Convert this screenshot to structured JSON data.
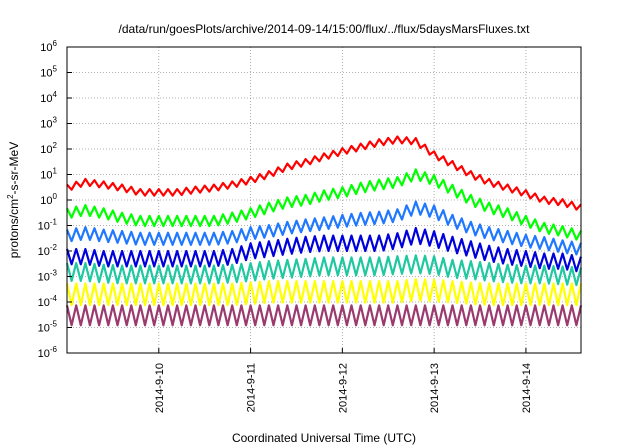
{
  "chart_data": {
    "type": "line",
    "title": "/data/run/goesPlots/archive/2014-09-14/15:00/flux/../flux/5daysMarsFluxes.txt",
    "xlabel": "Coordinated Universal Time (UTC)",
    "ylabel": {
      "prefix": "protons/cm",
      "sup": "2",
      "suffix": "-s-sr-MeV"
    },
    "yscale": "log",
    "ylim": [
      1e-06,
      1000000.0
    ],
    "xlim": [
      0.0,
      5.6
    ],
    "grid": true,
    "legend": "none",
    "y_ticks": [
      {
        "base": "10",
        "exp": "-6"
      },
      {
        "base": "10",
        "exp": "-5"
      },
      {
        "base": "10",
        "exp": "-4"
      },
      {
        "base": "10",
        "exp": "-3"
      },
      {
        "base": "10",
        "exp": "-2"
      },
      {
        "base": "10",
        "exp": "-1"
      },
      {
        "base": "10",
        "exp": "0"
      },
      {
        "base": "10",
        "exp": "1"
      },
      {
        "base": "10",
        "exp": "2"
      },
      {
        "base": "10",
        "exp": "3"
      },
      {
        "base": "10",
        "exp": "4"
      },
      {
        "base": "10",
        "exp": "5"
      },
      {
        "base": "10",
        "exp": "6"
      }
    ],
    "x_ticks": [
      {
        "label": "2014-9-10",
        "x": 1.0
      },
      {
        "label": "2014-9-11",
        "x": 2.0
      },
      {
        "label": "2014-9-12",
        "x": 3.0
      },
      {
        "label": "2014-9-13",
        "x": 4.0
      },
      {
        "label": "2014-9-14",
        "x": 5.0
      }
    ],
    "series": [
      {
        "color": "#ff0000",
        "x": [
          0,
          0.2,
          0.4,
          0.6,
          0.8,
          1.0,
          1.2,
          1.4,
          1.6,
          1.8,
          2.0,
          2.2,
          2.4,
          2.6,
          2.8,
          3.0,
          3.2,
          3.4,
          3.6,
          3.8,
          4.0,
          4.2,
          4.4,
          4.6,
          4.8,
          5.0,
          5.2,
          5.4,
          5.6
        ],
        "y": [
          3,
          5,
          4,
          3,
          2,
          2,
          2,
          2.5,
          3,
          4,
          6,
          10,
          20,
          30,
          50,
          80,
          120,
          180,
          230,
          200,
          60,
          25,
          10,
          5,
          3,
          1.8,
          1,
          0.8,
          0.5
        ],
        "amp": 1.8
      },
      {
        "color": "#00ff00",
        "x": [
          0,
          0.2,
          0.4,
          0.6,
          0.8,
          1.0,
          1.2,
          1.4,
          1.6,
          1.8,
          2.0,
          2.2,
          2.4,
          2.6,
          2.8,
          3.0,
          3.2,
          3.4,
          3.6,
          3.8,
          4.0,
          4.2,
          4.4,
          4.6,
          4.8,
          5.0,
          5.2,
          5.4,
          5.6
        ],
        "y": [
          0.3,
          0.4,
          0.3,
          0.2,
          0.15,
          0.15,
          0.15,
          0.15,
          0.15,
          0.2,
          0.3,
          0.5,
          0.8,
          1,
          1.5,
          2,
          3,
          4,
          5,
          10,
          6,
          2.5,
          1,
          0.5,
          0.3,
          0.15,
          0.08,
          0.06,
          0.04
        ],
        "amp": 2.5
      },
      {
        "color": "#1f78ff",
        "x": [
          0,
          0.2,
          0.4,
          0.6,
          0.8,
          1.0,
          1.2,
          1.4,
          1.6,
          1.8,
          2.0,
          2.2,
          2.4,
          2.6,
          2.8,
          3.0,
          3.2,
          3.4,
          3.6,
          3.8,
          4.0,
          4.2,
          4.4,
          4.6,
          4.8,
          5.0,
          5.2,
          5.4,
          5.6
        ],
        "y": [
          0.04,
          0.05,
          0.04,
          0.035,
          0.03,
          0.03,
          0.03,
          0.03,
          0.03,
          0.035,
          0.05,
          0.06,
          0.08,
          0.1,
          0.12,
          0.15,
          0.18,
          0.2,
          0.25,
          0.5,
          0.35,
          0.15,
          0.08,
          0.05,
          0.035,
          0.025,
          0.02,
          0.015,
          0.012
        ],
        "amp": 3
      },
      {
        "color": "#0000dd",
        "x": [
          0,
          0.2,
          0.4,
          0.6,
          0.8,
          1.0,
          1.2,
          1.4,
          1.6,
          1.8,
          2.0,
          2.2,
          2.4,
          2.6,
          2.8,
          3.0,
          3.2,
          3.4,
          3.6,
          3.8,
          4.0,
          4.2,
          4.4,
          4.6,
          4.8,
          5.0,
          5.2,
          5.4,
          5.6
        ],
        "y": [
          0.006,
          0.006,
          0.005,
          0.005,
          0.005,
          0.005,
          0.005,
          0.005,
          0.005,
          0.006,
          0.01,
          0.012,
          0.015,
          0.018,
          0.02,
          0.02,
          0.02,
          0.02,
          0.025,
          0.04,
          0.03,
          0.018,
          0.012,
          0.008,
          0.006,
          0.005,
          0.004,
          0.004,
          0.003
        ],
        "amp": 4
      },
      {
        "color": "#1fc8a0",
        "x": [
          0,
          0.2,
          0.4,
          0.6,
          0.8,
          1.0,
          1.2,
          1.4,
          1.6,
          1.8,
          2.0,
          2.2,
          2.4,
          2.6,
          2.8,
          3.0,
          3.2,
          3.4,
          3.6,
          3.8,
          4.0,
          4.2,
          4.4,
          4.6,
          4.8,
          5.0,
          5.2,
          5.4,
          5.6
        ],
        "y": [
          0.0015,
          0.0015,
          0.0013,
          0.0012,
          0.0012,
          0.0012,
          0.0012,
          0.0012,
          0.0012,
          0.0013,
          0.0015,
          0.0018,
          0.002,
          0.0022,
          0.0025,
          0.0025,
          0.0025,
          0.0025,
          0.0028,
          0.003,
          0.0028,
          0.002,
          0.0018,
          0.0015,
          0.0013,
          0.0012,
          0.0012,
          0.0011,
          0.001
        ],
        "amp": 5
      },
      {
        "color": "#ffff00",
        "x": [
          0,
          0.2,
          0.4,
          0.6,
          0.8,
          1.0,
          1.2,
          1.4,
          1.6,
          1.8,
          2.0,
          2.2,
          2.4,
          2.6,
          2.8,
          3.0,
          3.2,
          3.4,
          3.6,
          3.8,
          4.0,
          4.2,
          4.4,
          4.6,
          4.8,
          5.0,
          5.2,
          5.4,
          5.6
        ],
        "y": [
          0.0002,
          0.0002,
          0.0002,
          0.0002,
          0.0002,
          0.0002,
          0.0002,
          0.0002,
          0.0002,
          0.0002,
          0.00022,
          0.00025,
          0.00025,
          0.00025,
          0.00025,
          0.00025,
          0.00025,
          0.00025,
          0.00025,
          0.0003,
          0.00028,
          0.00025,
          0.00022,
          0.0002,
          0.0002,
          0.0002,
          0.0002,
          0.0002,
          0.0002
        ],
        "amp": 7
      },
      {
        "color": "#9b3a6e",
        "x": [
          0,
          0.2,
          0.4,
          0.6,
          0.8,
          1.0,
          1.2,
          1.4,
          1.6,
          1.8,
          2.0,
          2.2,
          2.4,
          2.6,
          2.8,
          3.0,
          3.2,
          3.4,
          3.6,
          3.8,
          4.0,
          4.2,
          4.4,
          4.6,
          4.8,
          5.0,
          5.2,
          5.4,
          5.6
        ],
        "y": [
          3e-05,
          3e-05,
          3e-05,
          3e-05,
          3e-05,
          3e-05,
          3e-05,
          3e-05,
          3e-05,
          3e-05,
          3e-05,
          3e-05,
          3e-05,
          3e-05,
          3e-05,
          3e-05,
          3e-05,
          3e-05,
          3e-05,
          3e-05,
          3e-05,
          3e-05,
          3e-05,
          3e-05,
          3e-05,
          3e-05,
          3e-05,
          3e-05,
          3e-05
        ],
        "amp": 6
      }
    ]
  }
}
